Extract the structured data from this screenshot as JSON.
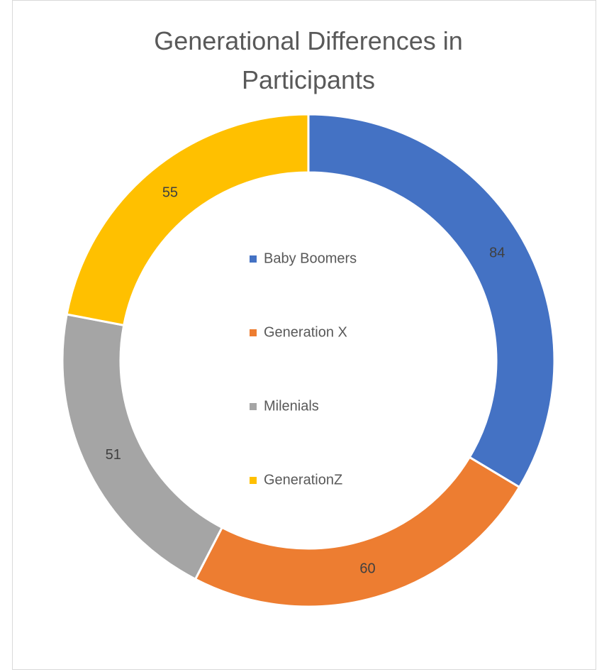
{
  "chart_data": {
    "type": "doughnut",
    "title": "Generational Differences in Participants",
    "categories": [
      "Baby Boomers",
      "Generation X",
      "Milenials",
      "GenerationZ"
    ],
    "values": [
      84,
      60,
      51,
      55
    ],
    "colors": [
      "#4472c4",
      "#ed7d31",
      "#a5a5a5",
      "#ffc000"
    ],
    "legend": "center"
  }
}
